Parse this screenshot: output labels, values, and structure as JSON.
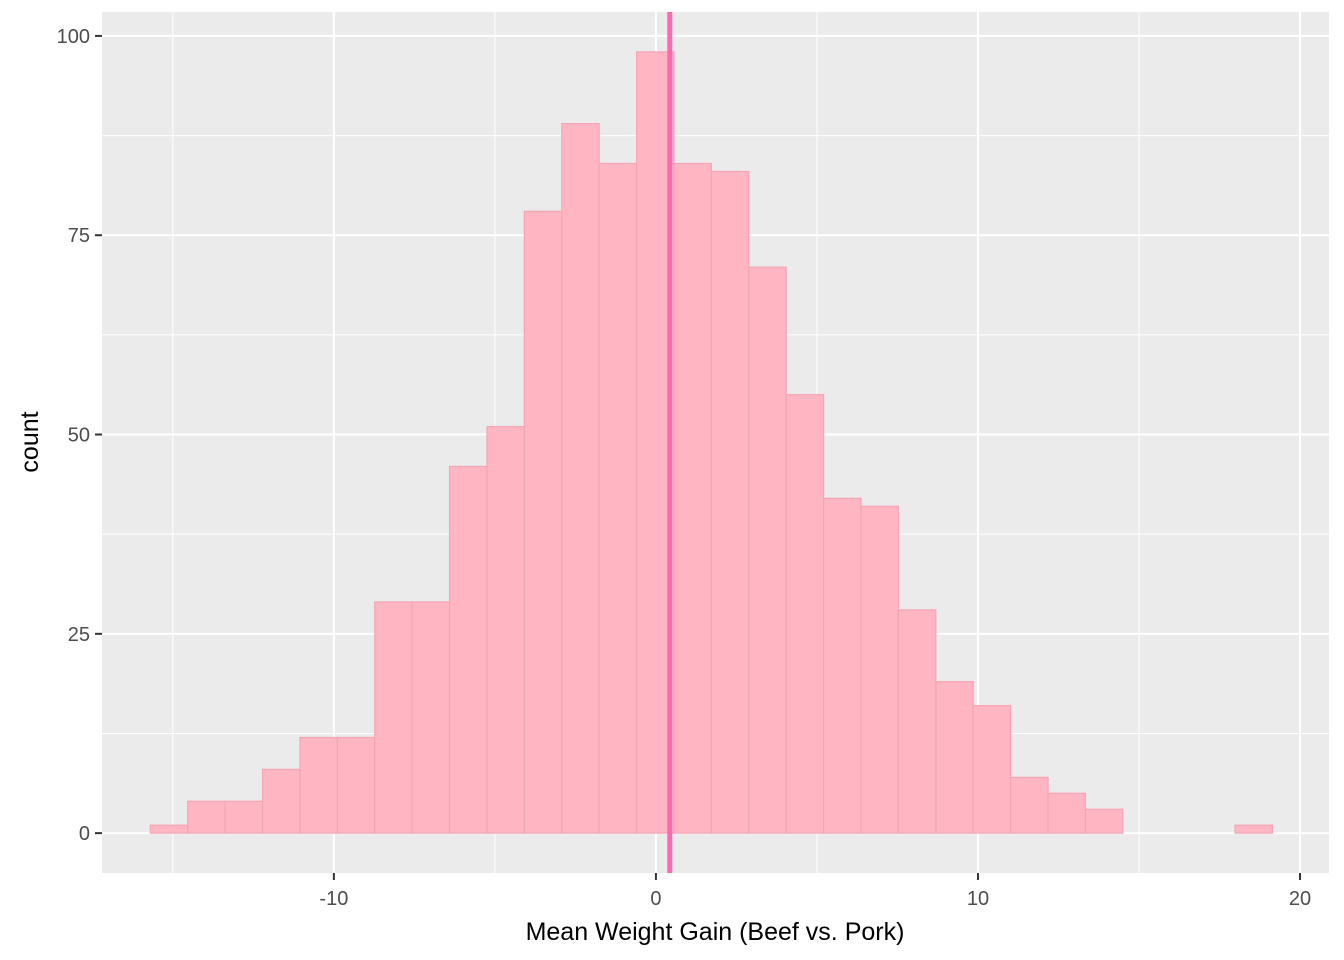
{
  "chart_data": {
    "type": "bar",
    "histogram": true,
    "xlabel": "Mean Weight Gain (Beef vs. Pork)",
    "ylabel": "count",
    "xlim": [
      -17.2,
      20.9
    ],
    "ylim": [
      -5,
      103
    ],
    "x_ticks": [
      -10,
      0,
      10,
      20
    ],
    "y_ticks": [
      0,
      25,
      50,
      75,
      100
    ],
    "x_tick_labels": [
      "-10",
      "0",
      "10",
      "20"
    ],
    "y_tick_labels": [
      "0",
      "25",
      "50",
      "75",
      "100"
    ],
    "bin_width": 1.1615,
    "bin_start": -15.7,
    "counts": [
      1,
      4,
      4,
      8,
      12,
      12,
      29,
      29,
      46,
      51,
      78,
      89,
      84,
      98,
      84,
      83,
      71,
      55,
      42,
      41,
      28,
      19,
      16,
      7,
      5,
      3,
      0,
      0,
      0,
      1
    ],
    "vline_x": 0.43,
    "grid": true,
    "colors": {
      "panel": "#EBEBEB",
      "grid": "#FFFFFF",
      "bar_fill": "#FFB5C2",
      "bar_stroke": "#F4A6B5",
      "vline": "#FF69B4"
    }
  }
}
